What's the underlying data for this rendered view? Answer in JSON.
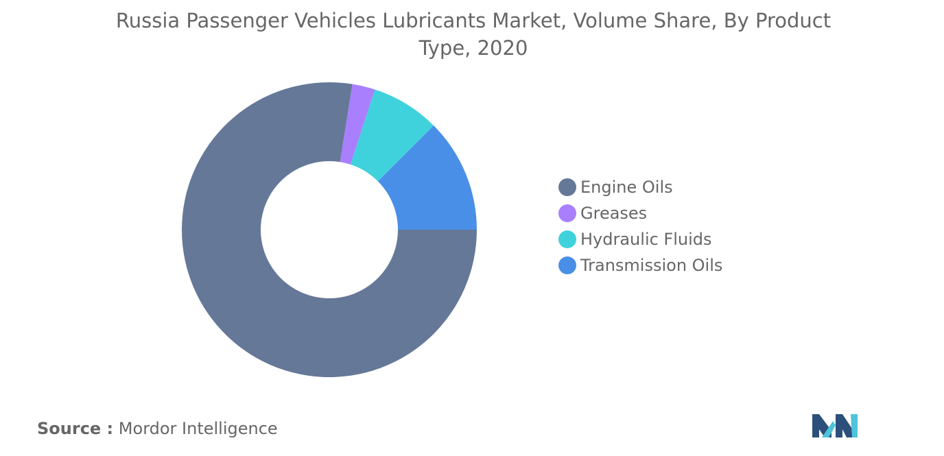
{
  "chart_data": {
    "type": "pie",
    "title": "Russia Passenger Vehicles Lubricants Market, Volume Share, By Product Type, 2020",
    "categories": [
      "Engine Oils",
      "Greases",
      "Hydraulic Fluids",
      "Transmission Oils"
    ],
    "values": [
      77.5,
      2.5,
      7.5,
      12.5
    ],
    "unit": "%",
    "colors": [
      "#657898",
      "#a97ffe",
      "#40d2dc",
      "#4a8fe7"
    ],
    "start_angle_deg": 90,
    "direction": "clockwise",
    "order_from_start": [
      3,
      2,
      1,
      0
    ],
    "donut": true,
    "legend_position": "right"
  },
  "source": {
    "label": "Source :",
    "text": "Mordor Intelligence"
  },
  "logo": {
    "icon": "mordor-intelligence-logo-icon",
    "colors": [
      "#2c4f7c",
      "#4fc3d9"
    ]
  }
}
